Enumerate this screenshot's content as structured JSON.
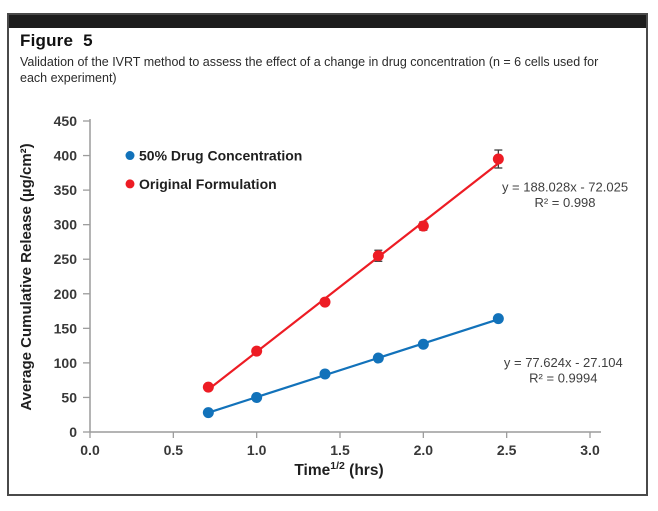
{
  "figure": {
    "label": "Figure 5",
    "caption": "Validation of the IVRT method to assess the effect of a change in drug concentration (n = 6 cells used for each experiment)",
    "top_bar_color": "#1d1d1d",
    "border_color": "#4a4a4a"
  },
  "chart_data": {
    "type": "scatter",
    "title": "",
    "xlabel": {
      "base": "Time",
      "sup": "1/2",
      "suffix": " (hrs)"
    },
    "ylabel": "Average Cumulative Release (µg/cm²)",
    "xlim": [
      0,
      3.0
    ],
    "ylim": [
      0,
      450
    ],
    "xticks": [
      "0.0",
      "0.5",
      "1.0",
      "1.5",
      "2.0",
      "2.5",
      "3.0"
    ],
    "yticks": [
      "0",
      "50",
      "100",
      "150",
      "200",
      "250",
      "300",
      "350",
      "400",
      "450"
    ],
    "grid": false,
    "legend_position": "upper-left-inside",
    "legend_x": 0.24,
    "colors": {
      "axis": "#9c9c9c",
      "tick_label": "#383838",
      "axis_title": "#1f1f1f",
      "legend_text": "#1f1f1f",
      "equation_text": "#3f3f3f",
      "error_bar": "#3d3d3d"
    },
    "series": [
      {
        "name": "50% Drug Concentration",
        "color": "#1272BA",
        "x": [
          0.71,
          1.0,
          1.41,
          1.73,
          2.0,
          2.45
        ],
        "y": [
          28,
          50,
          84,
          107,
          127,
          164
        ],
        "yerr": [
          2,
          2,
          2,
          3,
          3,
          4
        ],
        "legend_y": 400,
        "trendline": {
          "slope": 77.624,
          "intercept": -27.104,
          "x_start": 0.71,
          "x_end": 2.45
        }
      },
      {
        "name": "Original Formulation",
        "color": "#ED1C24",
        "x": [
          0.71,
          1.0,
          1.41,
          1.73,
          2.0,
          2.45
        ],
        "y": [
          65,
          117,
          188,
          255,
          298,
          395
        ],
        "yerr": [
          3,
          3,
          4,
          8,
          6,
          13
        ],
        "legend_y": 359,
        "trendline": {
          "slope": 188.028,
          "intercept": -72.025,
          "x_start": 0.71,
          "x_end": 2.45
        }
      }
    ],
    "annotations": [
      {
        "name": "original-formulation-equation",
        "lines": [
          "y = 188.028x - 72.025",
          "R² = 0.998"
        ],
        "x": 2.85,
        "y": 354
      },
      {
        "name": "half-concentration-equation",
        "lines": [
          "y = 77.624x - 27.104",
          "R² = 0.9994"
        ],
        "x": 2.84,
        "y": 100
      }
    ]
  }
}
